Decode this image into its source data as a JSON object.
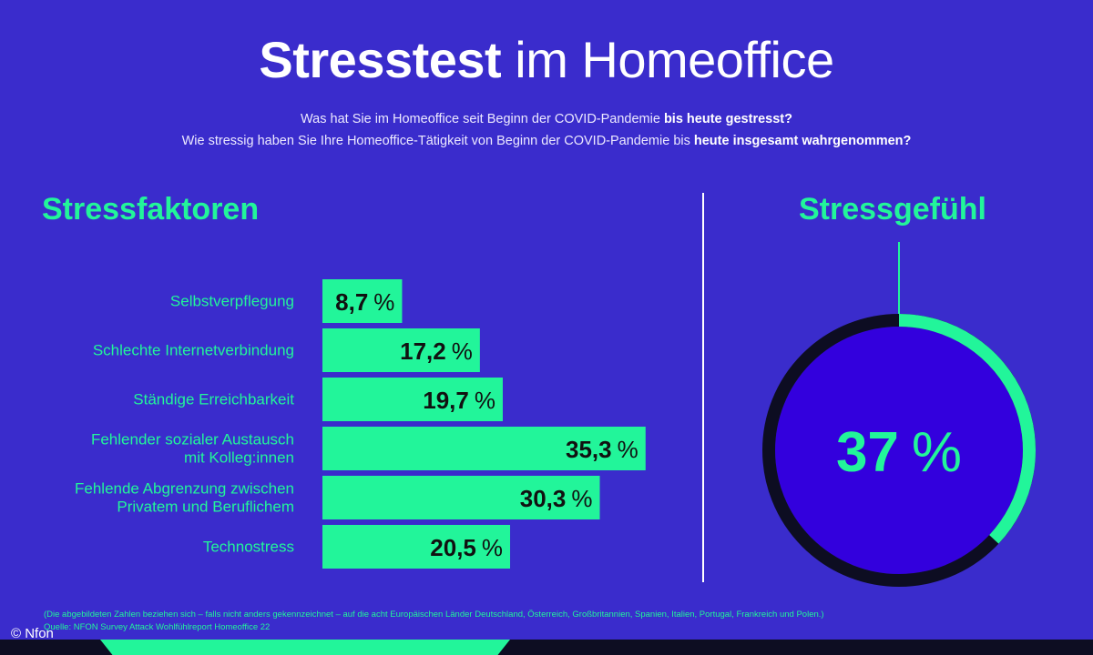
{
  "title": {
    "bold": "Stresstest",
    "light": "im Homeoffice"
  },
  "subtitle": {
    "line1_prefix": "Was hat Sie im Homeoffice seit Beginn der COVID-Pandemie ",
    "line1_bold": "bis heute gestresst?",
    "line2_prefix": "Wie stressig haben Sie Ihre Homeoffice-Tätigkeit von Beginn der COVID-Pandemie bis ",
    "line2_bold": "heute insgesamt wahrgenommen?"
  },
  "sections": {
    "left": "Stressfaktoren",
    "right": "Stressgefühl"
  },
  "colors": {
    "background": "#3a2ccc",
    "accent": "#22f59a",
    "ring_dark": "#0d0d22",
    "circle_fill": "#3300dd"
  },
  "chart_data": [
    {
      "type": "bar",
      "orientation": "horizontal",
      "categories": [
        [
          "Selbstverpflegung"
        ],
        [
          "Schlechte Internetverbindung"
        ],
        [
          "Ständige Erreichbarkeit"
        ],
        [
          "Fehlender sozialer Austausch",
          "mit Kolleg:innen"
        ],
        [
          "Fehlende Abgrenzung zwischen",
          "Privatem und Beruflichem"
        ],
        [
          "Technostress"
        ]
      ],
      "values": [
        8.7,
        17.2,
        19.7,
        35.3,
        30.3,
        20.5
      ],
      "value_labels": [
        "8,7",
        "17,2",
        "19,7",
        "35,3",
        "30,3",
        "20,5"
      ],
      "unit": "%"
    },
    {
      "type": "pie",
      "style": "donut",
      "value": 37,
      "value_label": "37",
      "unit": "%"
    }
  ],
  "footnotes": [
    "(Die abgebildeten Zahlen beziehen sich – falls nicht anders gekennzeichnet – auf die acht Europäischen Länder Deutschland, Österreich, Großbritannien, Spanien, Italien, Portugal, Frankreich und Polen.)",
    "Quelle: NFON Survey Attack Wohlfühlreport Homeoffice 22"
  ],
  "copyright": "© Nfon"
}
